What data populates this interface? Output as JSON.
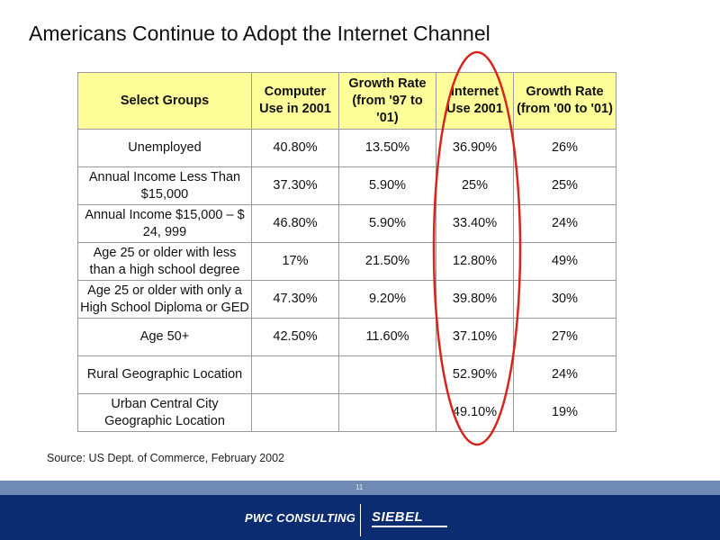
{
  "title": "Americans Continue to Adopt the Internet Channel",
  "table": {
    "headers": [
      "Select Groups",
      "Computer Use in 2001",
      "Growth Rate (from '97 to '01)",
      "Internet Use 2001",
      "Growth Rate (from '00 to '01)"
    ],
    "rows": [
      [
        "Unemployed",
        "40.80%",
        "13.50%",
        "36.90%",
        "26%"
      ],
      [
        "Annual Income Less Than $15,000",
        "37.30%",
        "5.90%",
        "25%",
        "25%"
      ],
      [
        "Annual Income $15,000 – $ 24, 999",
        "46.80%",
        "5.90%",
        "33.40%",
        "24%"
      ],
      [
        "Age 25 or older with less than a high school degree",
        "17%",
        "21.50%",
        "12.80%",
        "49%"
      ],
      [
        "Age 25 or older with only a High School Diploma or GED",
        "47.30%",
        "9.20%",
        "39.80%",
        "30%"
      ],
      [
        "Age 50+",
        "42.50%",
        "11.60%",
        "37.10%",
        "27%"
      ],
      [
        "Rural Geographic Location",
        "",
        "",
        "52.90%",
        "24%"
      ],
      [
        "Urban Central City Geographic Location",
        "",
        "",
        "49.10%",
        "19%"
      ]
    ]
  },
  "highlight_color": "#d9241c",
  "source": "Source:  US Dept. of Commerce, February 2002",
  "page_number": "11",
  "footer": {
    "logo_left": "PWC CONSULTING",
    "logo_right": "SIEBEL",
    "background": "#0c2c71"
  }
}
